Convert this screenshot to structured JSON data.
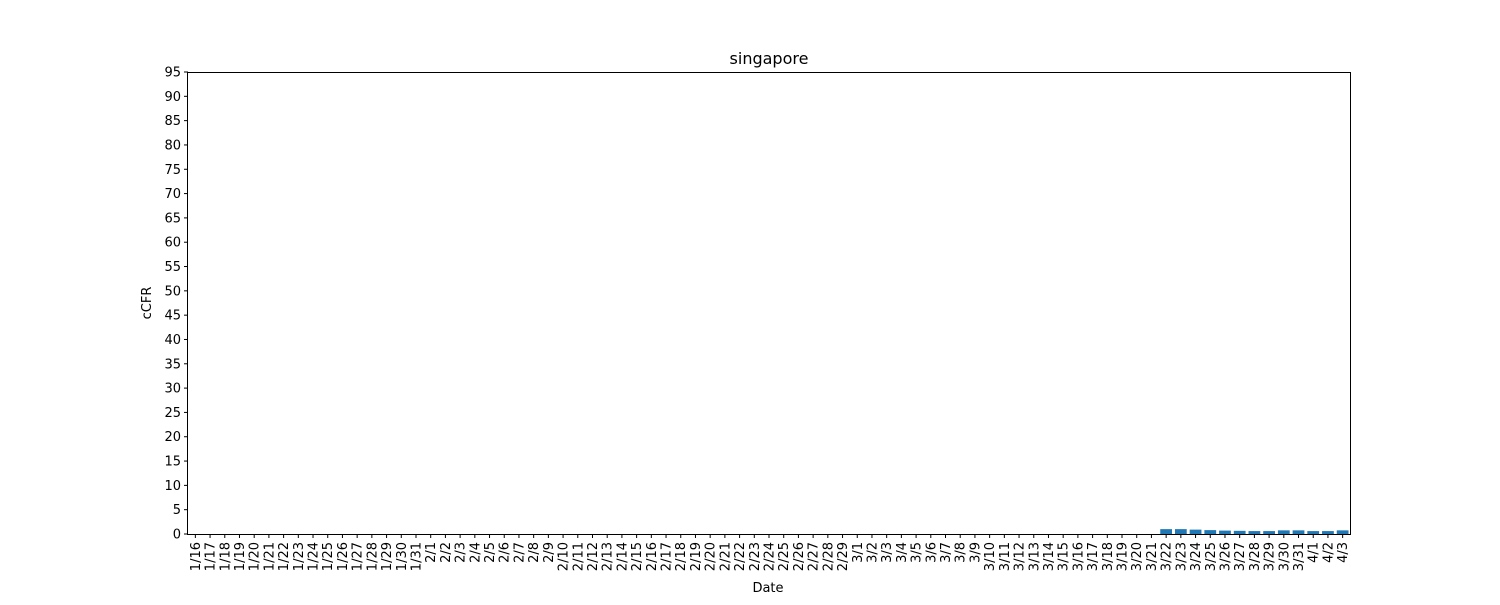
{
  "chart_data": {
    "type": "bar",
    "title": "singapore",
    "xlabel": "Date",
    "ylabel": "cCFR",
    "ylim": [
      0,
      95
    ],
    "yticks": [
      0,
      5,
      10,
      15,
      20,
      25,
      30,
      35,
      40,
      45,
      50,
      55,
      60,
      65,
      70,
      75,
      80,
      85,
      90,
      95
    ],
    "grid": false,
    "bar_color": "#1f77b4",
    "categories": [
      "1/16",
      "1/17",
      "1/18",
      "1/19",
      "1/20",
      "1/21",
      "1/22",
      "1/23",
      "1/24",
      "1/25",
      "1/26",
      "1/27",
      "1/28",
      "1/29",
      "1/30",
      "1/31",
      "2/1",
      "2/2",
      "2/3",
      "2/4",
      "2/5",
      "2/6",
      "2/7",
      "2/8",
      "2/9",
      "2/10",
      "2/11",
      "2/12",
      "2/13",
      "2/14",
      "2/15",
      "2/16",
      "2/17",
      "2/18",
      "2/19",
      "2/20",
      "2/21",
      "2/22",
      "2/23",
      "2/24",
      "2/25",
      "2/26",
      "2/27",
      "2/28",
      "2/29",
      "3/1",
      "3/2",
      "3/3",
      "3/4",
      "3/5",
      "3/6",
      "3/7",
      "3/8",
      "3/9",
      "3/10",
      "3/11",
      "3/12",
      "3/13",
      "3/14",
      "3/15",
      "3/16",
      "3/17",
      "3/18",
      "3/19",
      "3/20",
      "3/21",
      "3/22",
      "3/23",
      "3/24",
      "3/25",
      "3/26",
      "3/27",
      "3/28",
      "3/29",
      "3/30",
      "3/31",
      "4/1",
      "4/2",
      "4/3"
    ],
    "values": [
      0,
      0,
      0,
      0,
      0,
      0,
      0,
      0,
      0,
      0,
      0,
      0,
      0,
      0,
      0,
      0,
      0,
      0,
      0,
      0,
      0,
      0,
      0,
      0,
      0,
      0,
      0,
      0,
      0,
      0,
      0,
      0,
      0,
      0,
      0,
      0,
      0,
      0,
      0,
      0,
      0,
      0,
      0,
      0,
      0,
      0,
      0,
      0,
      0,
      0,
      0,
      0,
      0,
      0,
      0,
      0,
      0,
      0,
      0,
      0,
      0,
      0,
      0,
      0,
      0,
      0,
      1.0,
      1.0,
      0.9,
      0.8,
      0.7,
      0.65,
      0.6,
      0.6,
      0.75,
      0.75,
      0.6,
      0.6,
      0.75
    ]
  }
}
